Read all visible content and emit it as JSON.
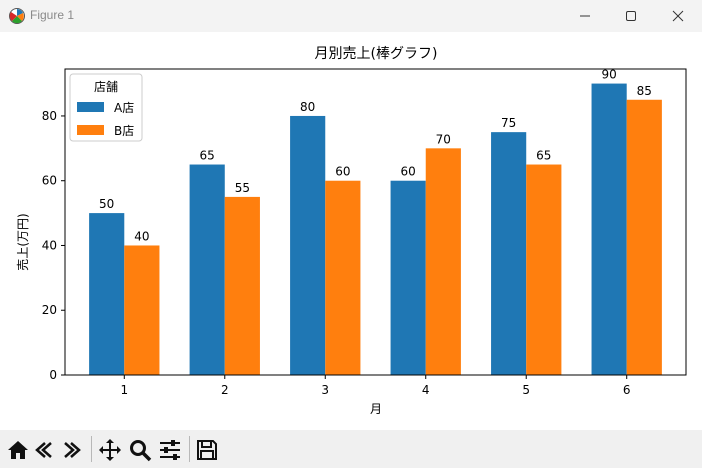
{
  "window": {
    "title": "Figure 1",
    "icons": {
      "app": "matplotlib-icon",
      "minimize": "minimize-icon",
      "maximize": "maximize-icon",
      "close": "close-icon"
    }
  },
  "toolbar": {
    "icons": [
      "home-icon",
      "back-icon",
      "forward-icon",
      "pan-icon",
      "zoom-icon",
      "configure-subplots-icon",
      "save-icon"
    ]
  },
  "chart_data": {
    "type": "bar",
    "title": "月別売上(棒グラフ)",
    "xlabel": "月",
    "ylabel": "売上(万円)",
    "categories": [
      "1",
      "2",
      "3",
      "4",
      "5",
      "6"
    ],
    "series": [
      {
        "name": "A店",
        "values": [
          50,
          65,
          80,
          60,
          75,
          90
        ],
        "color": "#1f77b4"
      },
      {
        "name": "B店",
        "values": [
          40,
          55,
          60,
          70,
          65,
          85
        ],
        "color": "#ff7f0e"
      }
    ],
    "ylim": [
      0,
      94.5
    ],
    "yticks": [
      0,
      20,
      40,
      60,
      80
    ],
    "legend": {
      "title": "店舗",
      "placement": "top-left"
    },
    "grid": false,
    "data_labels": true
  }
}
